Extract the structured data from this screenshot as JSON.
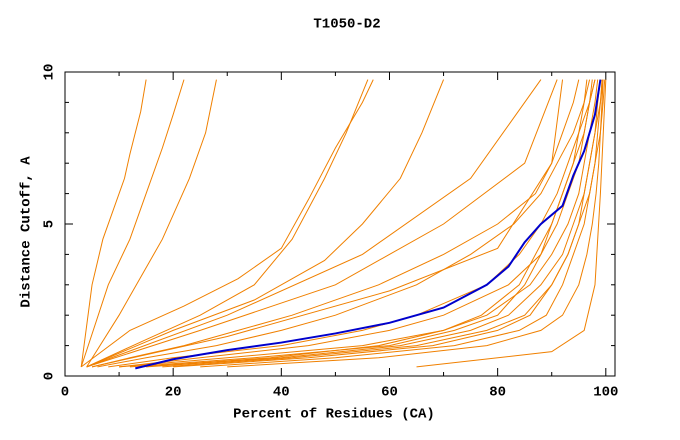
{
  "chart_data": {
    "type": "line",
    "title": "T1050-D2",
    "x_label": "Percent of Residues (CA)",
    "y_label": "Distance Cutoff, A",
    "xlim": [
      0,
      101.7
    ],
    "ylim": [
      0,
      10
    ],
    "xticks": [
      0,
      20,
      40,
      60,
      80,
      100
    ],
    "yticks": [
      0,
      5,
      10
    ],
    "xticks_minor": [
      10,
      30,
      50,
      70,
      90
    ],
    "yticks_minor": [
      1,
      2,
      3,
      4,
      6,
      7,
      8,
      9
    ],
    "series": [
      {
        "color": "#f08000",
        "x": [
          3,
          5,
          7,
          9,
          11,
          12,
          13,
          14,
          15
        ],
        "values": [
          0.3,
          3,
          4.5,
          5.5,
          6.5,
          7.3,
          8,
          8.7,
          9.75
        ]
      },
      {
        "color": "#f08000",
        "x": [
          3,
          8,
          12,
          15,
          18,
          20,
          22
        ],
        "values": [
          0.3,
          3,
          4.5,
          6,
          7.5,
          8.6,
          9.75
        ]
      },
      {
        "color": "#f08000",
        "x": [
          4,
          10,
          18,
          23,
          26,
          28
        ],
        "values": [
          0.3,
          2,
          4.5,
          6.5,
          8,
          9.75
        ]
      },
      {
        "color": "#f08000",
        "x": [
          3,
          12,
          22,
          32,
          40,
          45,
          50,
          55,
          57
        ],
        "values": [
          0.3,
          1.5,
          2.3,
          3.2,
          4.2,
          5.8,
          7.5,
          9,
          9.75
        ]
      },
      {
        "color": "#f08000",
        "x": [
          4,
          15,
          25,
          35,
          42,
          48,
          52,
          56
        ],
        "values": [
          0.3,
          1.2,
          2,
          3,
          4.5,
          6.5,
          8,
          9.75
        ]
      },
      {
        "color": "#f08000",
        "x": [
          4,
          20,
          35,
          48,
          55,
          62,
          66,
          70
        ],
        "values": [
          0.3,
          1.5,
          2.5,
          3.8,
          5,
          6.5,
          8,
          9.75
        ]
      },
      {
        "color": "#f08000",
        "x": [
          4,
          30,
          55,
          75,
          88
        ],
        "values": [
          0.3,
          2,
          4,
          6.5,
          9.75
        ]
      },
      {
        "color": "#f08000",
        "x": [
          4,
          25,
          50,
          70,
          85,
          91
        ],
        "values": [
          0.3,
          1.5,
          3,
          5,
          7,
          9.75
        ]
      },
      {
        "color": "#f08000",
        "x": [
          5,
          30,
          60,
          80,
          90,
          92
        ],
        "values": [
          0.3,
          1.3,
          2.8,
          4.2,
          7,
          9.75
        ]
      },
      {
        "color": "#f08000",
        "x": [
          65,
          90,
          96,
          98,
          99,
          100
        ],
        "values": [
          0.3,
          0.8,
          1.5,
          3,
          6,
          9.75
        ]
      },
      {
        "color": "#f08000",
        "x": [
          10,
          30,
          55,
          70,
          78,
          86,
          90,
          93,
          95,
          96,
          97,
          98,
          98.5
        ],
        "values": [
          0.3,
          0.6,
          1,
          1.5,
          2,
          3,
          4,
          5,
          6,
          7,
          8,
          9,
          9.75
        ]
      },
      {
        "color": "#f08000",
        "x": [
          15,
          40,
          62,
          75,
          82,
          88,
          92,
          94,
          96,
          97,
          98,
          99,
          99.5
        ],
        "values": [
          0.3,
          0.6,
          1,
          1.5,
          2,
          3,
          4,
          5,
          6,
          7,
          8,
          9,
          9.75
        ]
      },
      {
        "color": "#f08000",
        "x": [
          20,
          45,
          68,
          80,
          86,
          90,
          93,
          95,
          97,
          98,
          99,
          99.5,
          99.8
        ],
        "values": [
          0.3,
          0.6,
          1,
          1.5,
          2,
          3,
          4,
          5,
          6,
          7,
          8,
          9,
          9.75
        ]
      },
      {
        "color": "#f08000",
        "x": [
          8,
          20,
          40,
          55,
          65,
          78,
          84,
          88,
          91,
          93,
          95,
          97,
          98
        ],
        "values": [
          0.3,
          0.6,
          1,
          1.5,
          2,
          3,
          4,
          5,
          6,
          7,
          8,
          9,
          9.75
        ]
      },
      {
        "color": "#f08000",
        "x": [
          12,
          35,
          60,
          72,
          80,
          85,
          88,
          90,
          92,
          94,
          96,
          97,
          98
        ],
        "values": [
          0.3,
          0.6,
          1,
          1.5,
          2,
          3,
          4,
          5,
          6,
          7,
          8,
          9,
          9.75
        ]
      },
      {
        "color": "#f08000",
        "x": [
          25,
          50,
          72,
          84,
          89,
          92,
          94,
          96,
          97,
          98,
          98.5,
          99,
          99.3
        ],
        "values": [
          0.3,
          0.6,
          1,
          1.5,
          2,
          3,
          4,
          5,
          6,
          7,
          8,
          9,
          9.75
        ]
      },
      {
        "color": "#f08000",
        "x": [
          6,
          15,
          28,
          40,
          50,
          65,
          75,
          83,
          88,
          91,
          94,
          96,
          97
        ],
        "values": [
          0.3,
          0.6,
          1,
          1.5,
          2,
          3,
          4,
          5,
          6,
          7,
          8,
          9,
          9.75
        ]
      },
      {
        "color": "#f08000",
        "x": [
          5,
          12,
          22,
          32,
          42,
          58,
          70,
          80,
          87,
          90,
          92,
          94,
          95
        ],
        "values": [
          0.3,
          0.6,
          1,
          1.5,
          2,
          3,
          4,
          5,
          6,
          7,
          8,
          9,
          9.75
        ]
      },
      {
        "color": "#f08000",
        "x": [
          18,
          42,
          65,
          78,
          85,
          90,
          93,
          95,
          96,
          97,
          98,
          98.5,
          99
        ],
        "values": [
          0.3,
          0.6,
          1,
          1.5,
          2,
          3,
          4,
          5,
          6,
          7,
          8,
          9,
          9.75
        ]
      },
      {
        "color": "#f08000",
        "x": [
          30,
          58,
          78,
          88,
          92,
          95,
          96.5,
          97.5,
          98.2,
          98.7,
          99,
          99.3,
          99.5
        ],
        "values": [
          0.3,
          0.6,
          1,
          1.5,
          2,
          3,
          4,
          5,
          6,
          7,
          8,
          9,
          9.75
        ]
      },
      {
        "color": "#f08000",
        "x": [
          10,
          25,
          45,
          60,
          70,
          82,
          88,
          91,
          93,
          95,
          96,
          97,
          97.5
        ],
        "values": [
          0.3,
          0.6,
          1,
          1.5,
          2,
          3,
          4,
          5,
          6,
          7,
          8,
          9,
          9.75
        ]
      },
      {
        "color": "#f08000",
        "x": [
          14,
          38,
          58,
          70,
          77,
          84,
          87,
          90,
          92,
          94,
          95,
          96,
          96.5
        ],
        "values": [
          0.3,
          0.6,
          1,
          1.5,
          2,
          3,
          4,
          5,
          6,
          7,
          8,
          9,
          9.75
        ]
      },
      {
        "color": "#0000cc",
        "x": [
          13,
          20,
          30,
          40,
          50,
          60,
          70,
          78,
          82,
          85,
          88,
          92,
          94,
          96,
          98,
          99
        ],
        "values": [
          0.25,
          0.55,
          0.85,
          1.1,
          1.4,
          1.75,
          2.25,
          3,
          3.6,
          4.4,
          5,
          5.6,
          6.6,
          7.4,
          8.6,
          9.75
        ]
      }
    ]
  }
}
